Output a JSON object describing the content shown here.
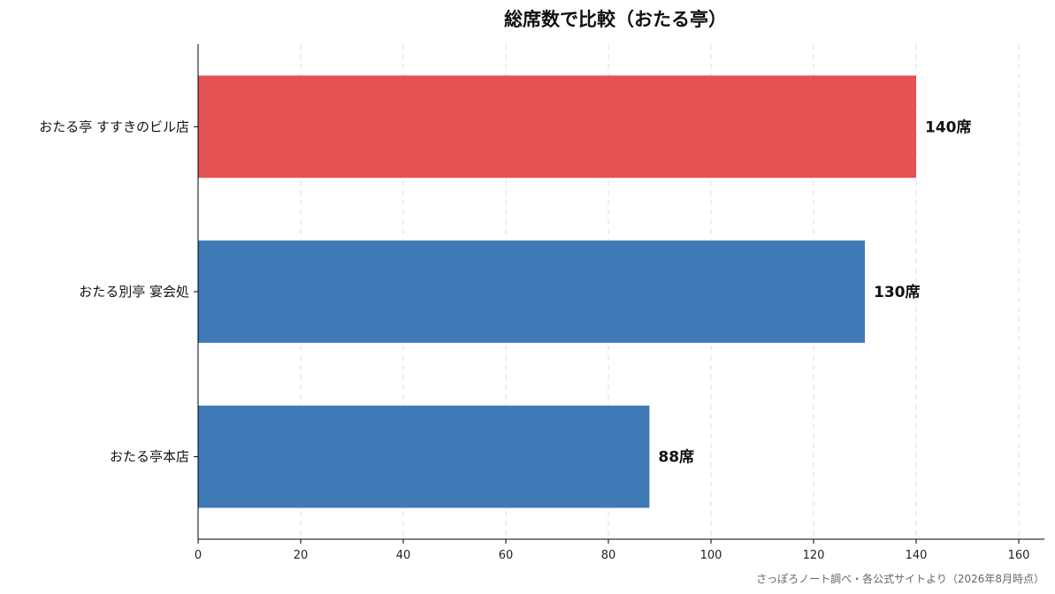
{
  "chart_data": {
    "type": "bar",
    "orientation": "horizontal",
    "title": "総席数で比較（おたる亭）",
    "categories": [
      "おたる亭 すすきのビル店",
      "おたる別亭 宴会処",
      "おたる亭本店"
    ],
    "values": [
      140,
      130,
      88
    ],
    "data_labels": [
      "140席",
      "130席",
      "88席"
    ],
    "colors": [
      "#e65153",
      "#3f7ab6",
      "#3f7ab6"
    ],
    "xlim": [
      0,
      165
    ],
    "xticks": [
      0,
      20,
      40,
      60,
      80,
      100,
      120,
      140,
      160
    ],
    "grid": "vertical dashed",
    "source": "さっぽろノート調べ・各公式サイトより（2026年8月時点）"
  }
}
